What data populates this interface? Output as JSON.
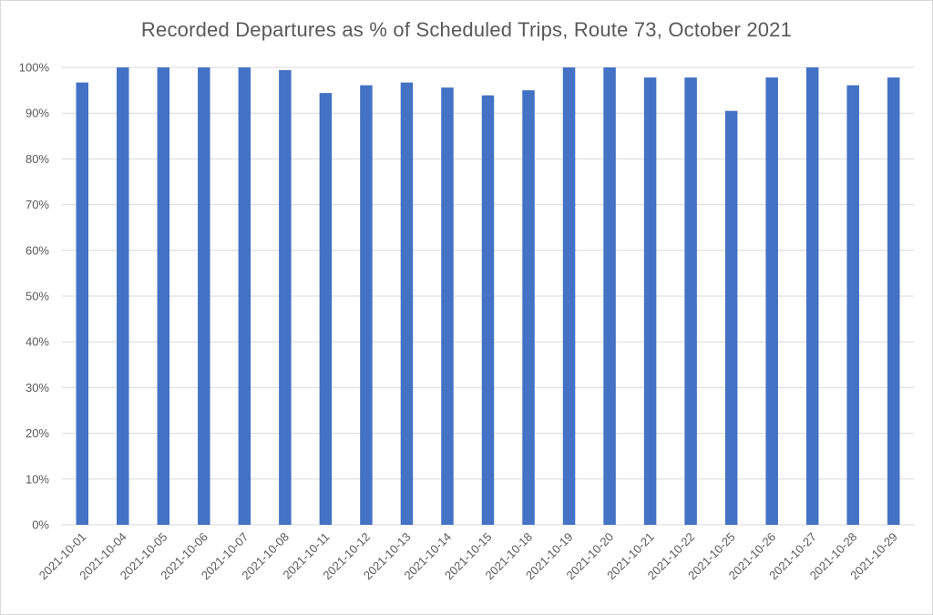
{
  "chart_data": {
    "type": "bar",
    "title": "Recorded Departures as % of Scheduled Trips, Route 73, October 2021",
    "xlabel": "",
    "ylabel": "",
    "categories": [
      "2021-10-01",
      "2021-10-04",
      "2021-10-05",
      "2021-10-06",
      "2021-10-07",
      "2021-10-08",
      "2021-10-11",
      "2021-10-12",
      "2021-10-13",
      "2021-10-14",
      "2021-10-15",
      "2021-10-18",
      "2021-10-19",
      "2021-10-20",
      "2021-10-21",
      "2021-10-22",
      "2021-10-25",
      "2021-10-26",
      "2021-10-27",
      "2021-10-28",
      "2021-10-29"
    ],
    "values": [
      96.7,
      100,
      100,
      100,
      100,
      99.4,
      94.4,
      96.1,
      96.7,
      95.6,
      93.9,
      95.0,
      100,
      100,
      97.8,
      97.8,
      90.5,
      97.8,
      100,
      96.1,
      97.8
    ],
    "ylim": [
      0,
      100
    ],
    "yticks": [
      0,
      10,
      20,
      30,
      40,
      50,
      60,
      70,
      80,
      90,
      100
    ],
    "ytick_labels": [
      "0%",
      "10%",
      "20%",
      "30%",
      "40%",
      "50%",
      "60%",
      "70%",
      "80%",
      "90%",
      "100%"
    ],
    "grid": true,
    "legend": "none",
    "bar_color": "#4472C4",
    "grid_color": "#d9d9d9"
  }
}
